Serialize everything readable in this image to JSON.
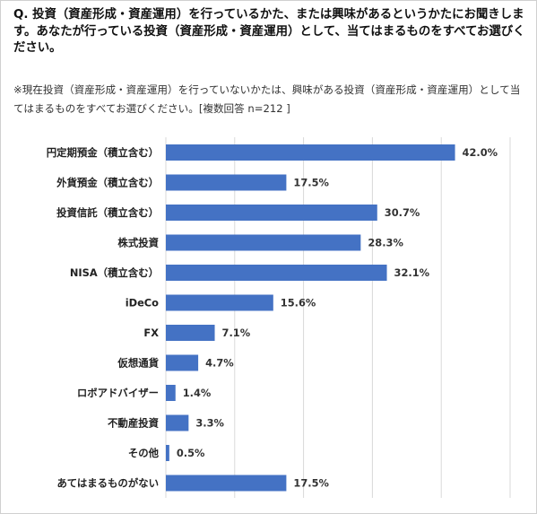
{
  "question": "Q. 投資（資産形成・資産運用）を行っているかた、または興味があるというかたにお聞きします。あなたが行っている投資（資産形成・資産運用）として、当てはまるものをすべてお選びください。",
  "note": "※現在投資（資産形成・資産運用）を行っていないかたは、興味がある投資（資産形成・資産運用）として当てはまるものをすべてお選びください。[複数回答 n=212 ]",
  "colors": {
    "bar": "#4472c4",
    "grid": "#d9d9d9"
  },
  "chart_data": {
    "type": "bar",
    "orientation": "horizontal",
    "categories": [
      "円定期預金（積立含む）",
      "外貨預金（積立含む）",
      "投資信託（積立含む）",
      "株式投資",
      "NISA（積立含む）",
      "iDeCo",
      "FX",
      "仮想通貨",
      "ロボアドバイザー",
      "不動産投資",
      "その他",
      "あてはまるものがない"
    ],
    "values": [
      42.0,
      17.5,
      30.7,
      28.3,
      32.1,
      15.6,
      7.1,
      4.7,
      1.4,
      3.3,
      0.5,
      17.5
    ],
    "value_labels": [
      "42.0%",
      "17.5%",
      "30.7%",
      "28.3%",
      "32.1%",
      "15.6%",
      "7.1%",
      "4.7%",
      "1.4%",
      "3.3%",
      "0.5%",
      "17.5%"
    ],
    "xlim": [
      0,
      50
    ],
    "grid": true,
    "n": 212
  }
}
